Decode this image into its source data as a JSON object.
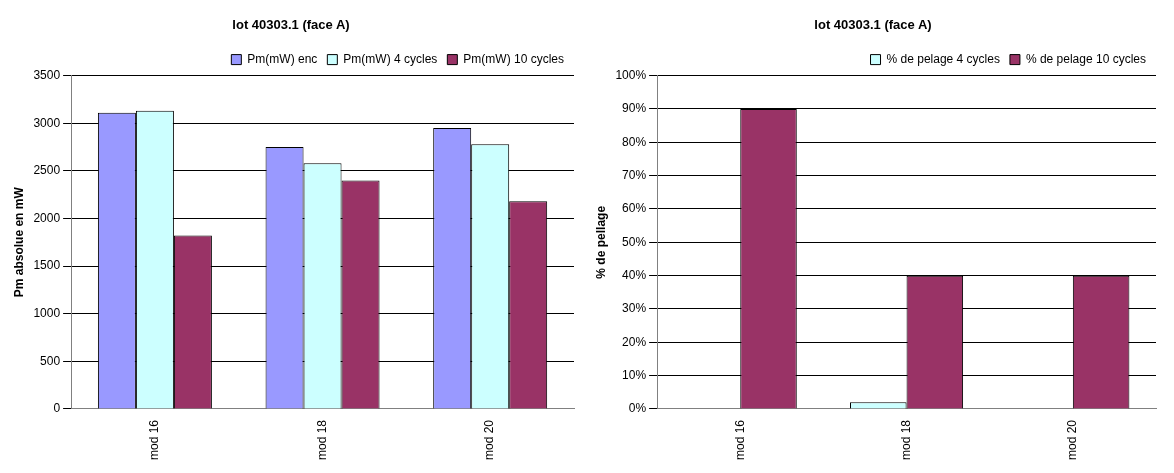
{
  "chart_data": [
    {
      "type": "bar",
      "title": "lot 40303.1 (face A)",
      "ylabel": "Pm absolue en mW",
      "categories": [
        "mod 16",
        "mod 18",
        "mod 20"
      ],
      "series": [
        {
          "name": "Pm(mW) enc",
          "color": "#9999ff",
          "values": [
            3110,
            2750,
            2950
          ]
        },
        {
          "name": "Pm(mW) 4 cycles",
          "color": "#ccffff",
          "values": [
            3130,
            2580,
            2780
          ]
        },
        {
          "name": "Pm(mW) 10 cycles",
          "color": "#993366",
          "values": [
            1820,
            2400,
            2180
          ]
        }
      ],
      "ylim": [
        0,
        3500
      ],
      "yticks": [
        0,
        500,
        1000,
        1500,
        2000,
        2500,
        3000,
        3500
      ],
      "grid": "y",
      "legend": "top right"
    },
    {
      "type": "bar",
      "title": "lot 40303.1 (face A)",
      "ylabel": "% de pellage",
      "categories": [
        "mod 16",
        "mod 18",
        "mod 20"
      ],
      "series": [
        {
          "name": "% de pelage 4 cycles",
          "color": "#ccffff",
          "values": [
            0,
            2,
            0
          ]
        },
        {
          "name": "% de pelage 10 cycles",
          "color": "#993366",
          "values": [
            90,
            40,
            40
          ]
        }
      ],
      "ylim": [
        0,
        100
      ],
      "yticks": [
        {
          "value": 0,
          "label": "0%"
        },
        {
          "value": 10,
          "label": "10%"
        },
        {
          "value": 20,
          "label": "20%"
        },
        {
          "value": 30,
          "label": "30%"
        },
        {
          "value": 40,
          "label": "40%"
        },
        {
          "value": 50,
          "label": "50%"
        },
        {
          "value": 60,
          "label": "60%"
        },
        {
          "value": 70,
          "label": "70%"
        },
        {
          "value": 80,
          "label": "80%"
        },
        {
          "value": 90,
          "label": "90%"
        },
        {
          "value": 100,
          "label": "100%"
        }
      ],
      "grid": "y",
      "legend": "top right"
    }
  ]
}
